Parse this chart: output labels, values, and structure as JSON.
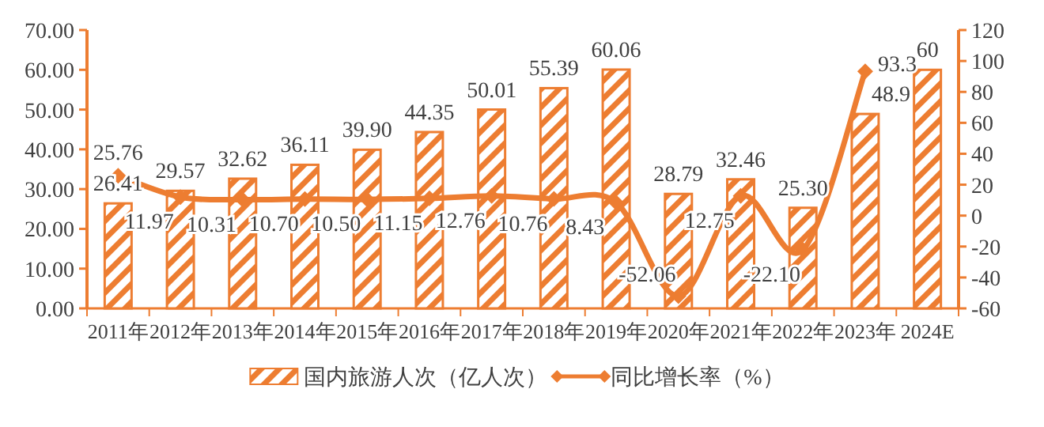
{
  "chart_data": {
    "type": "bar",
    "categories": [
      "2011年",
      "2012年",
      "2013年",
      "2014年",
      "2015年",
      "2016年",
      "2017年",
      "2018年",
      "2019年",
      "2020年",
      "2021年",
      "2022年",
      "2023年",
      "2024E"
    ],
    "series": [
      {
        "name": "国内旅游人次（亿人次）",
        "type": "bar",
        "color": "#ed7d31",
        "values": [
          26.41,
          29.57,
          32.62,
          36.11,
          39.9,
          44.35,
          50.01,
          55.39,
          60.06,
          28.79,
          32.46,
          25.3,
          48.9,
          60
        ],
        "value_labels": [
          "26.41",
          "29.57",
          "32.62",
          "36.11",
          "39.90",
          "44.35",
          "50.01",
          "55.39",
          "60.06",
          "28.79",
          "32.46",
          "25.30",
          "48.9",
          "60"
        ]
      },
      {
        "name": "同比增长率（%）",
        "type": "line",
        "axis": "y2",
        "color": "#ed7d31",
        "marker": "diamond",
        "values": [
          25.76,
          11.97,
          10.31,
          10.7,
          10.5,
          11.15,
          12.76,
          10.76,
          8.43,
          -52.06,
          12.75,
          -22.1,
          93.3,
          null
        ],
        "value_labels": [
          "25.76",
          "11.97",
          "10.31",
          "10.70",
          "10.50",
          "11.15",
          "12.76",
          "10.76",
          "8.43",
          "-52.06",
          "12.75",
          "-22.10",
          "93.3",
          null
        ]
      }
    ],
    "ylim": [
      0,
      70
    ],
    "yticks": [
      {
        "value": 0,
        "label": "0.00"
      },
      {
        "value": 10,
        "label": "10.00"
      },
      {
        "value": 20,
        "label": "20.00"
      },
      {
        "value": 30,
        "label": "30.00"
      },
      {
        "value": 40,
        "label": "40.00"
      },
      {
        "value": 50,
        "label": "50.00"
      },
      {
        "value": 60,
        "label": "60.00"
      },
      {
        "value": 70,
        "label": "70.00"
      }
    ],
    "y2lim": [
      -60,
      120
    ],
    "y2ticks": [
      -60,
      -40,
      -20,
      0,
      20,
      40,
      60,
      80,
      100,
      120
    ],
    "legend": "bottom"
  }
}
